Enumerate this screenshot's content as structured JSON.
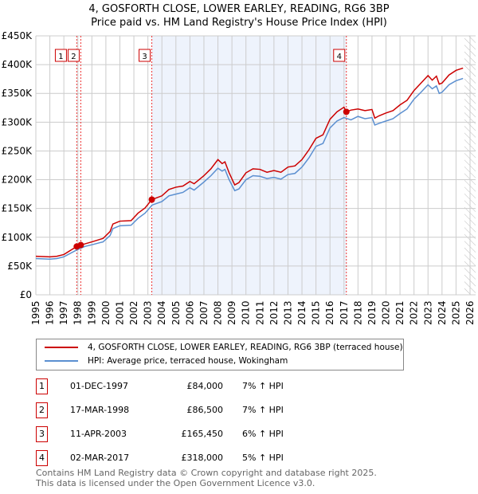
{
  "title": "4, GOSFORTH CLOSE, LOWER EARLEY, READING, RG6 3BP",
  "subtitle": "Price paid vs. HM Land Registry's House Price Index (HPI)",
  "colors": {
    "property": "#cc0000",
    "hpi": "#5b8fd0",
    "shade": "#eef3fc"
  },
  "chart_data": {
    "type": "line",
    "xlim": [
      1995,
      2026
    ],
    "ylim": [
      0,
      450000
    ],
    "yticks": [
      0,
      50000,
      100000,
      150000,
      200000,
      250000,
      300000,
      350000,
      400000,
      450000
    ],
    "ytick_labels": [
      "£0",
      "£50K",
      "£100K",
      "£150K",
      "£200K",
      "£250K",
      "£300K",
      "£350K",
      "£400K",
      "£450K"
    ],
    "xticks": [
      "1995",
      "1996",
      "1997",
      "1998",
      "1999",
      "2000",
      "2001",
      "2002",
      "2003",
      "2004",
      "2005",
      "2006",
      "2007",
      "2008",
      "2009",
      "2010",
      "2011",
      "2012",
      "2013",
      "2014",
      "2015",
      "2016",
      "2017",
      "2018",
      "2019",
      "2020",
      "2021",
      "2022",
      "2023",
      "2024",
      "2025",
      "2026"
    ],
    "grid": true,
    "shaded_range": [
      2003.28,
      2017.17
    ],
    "forecast_hatch_from": 2025.6,
    "series": [
      {
        "name": "4, GOSFORTH CLOSE, LOWER EARLEY, READING, RG6 3BP (terraced house)",
        "color": "#cc0000",
        "x": [
          1995,
          1996,
          1996.5,
          1997,
          1997.92,
          1998.21,
          1999,
          1999.8,
          2000.3,
          2000.5,
          2001,
          2001.8,
          2002.3,
          2002.8,
          2003.28,
          2004,
          2004.5,
          2005,
          2005.5,
          2006,
          2006.3,
          2007,
          2007.5,
          2008,
          2008.3,
          2008.5,
          2008.8,
          2009.2,
          2009.5,
          2010,
          2010.5,
          2011,
          2011.5,
          2012,
          2012.5,
          2013,
          2013.5,
          2014,
          2014.5,
          2015,
          2015.5,
          2016,
          2016.5,
          2017,
          2017.17,
          2017.5,
          2018,
          2018.5,
          2019,
          2019.2,
          2019.5,
          2020,
          2020.5,
          2021,
          2021.5,
          2022,
          2022.5,
          2023,
          2023.3,
          2023.6,
          2023.8,
          2024,
          2024.5,
          2025,
          2025.5
        ],
        "y": [
          67000,
          66000,
          67000,
          70000,
          84000,
          86500,
          92000,
          98000,
          110000,
          123000,
          128000,
          129000,
          142000,
          151000,
          165450,
          172000,
          183000,
          187000,
          189000,
          197000,
          193000,
          207000,
          219000,
          235000,
          228000,
          231000,
          212000,
          191000,
          195000,
          212000,
          219000,
          218000,
          213000,
          216000,
          213000,
          222000,
          224000,
          235000,
          252000,
          272000,
          278000,
          305000,
          318000,
          326000,
          318000,
          321000,
          323000,
          320000,
          322000,
          307000,
          311000,
          316000,
          320000,
          330000,
          338000,
          355000,
          368000,
          381000,
          373000,
          380000,
          366000,
          368000,
          382000,
          390000,
          394000
        ]
      },
      {
        "name": "HPI: Average price, terraced house, Wokingham",
        "color": "#5b8fd0",
        "x": [
          1995,
          1996,
          1996.5,
          1997,
          1997.92,
          1998.5,
          1999,
          1999.8,
          2000.3,
          2000.5,
          2001,
          2001.8,
          2002.3,
          2002.8,
          2003.3,
          2004,
          2004.5,
          2005,
          2005.5,
          2006,
          2006.3,
          2007,
          2007.5,
          2008,
          2008.3,
          2008.5,
          2008.8,
          2009.2,
          2009.5,
          2010,
          2010.5,
          2011,
          2011.5,
          2012,
          2012.5,
          2013,
          2013.5,
          2014,
          2014.5,
          2015,
          2015.5,
          2016,
          2016.5,
          2017,
          2017.5,
          2018,
          2018.5,
          2019,
          2019.2,
          2019.5,
          2020,
          2020.5,
          2021,
          2021.5,
          2022,
          2022.5,
          2023,
          2023.3,
          2023.6,
          2023.8,
          2024,
          2024.5,
          2025,
          2025.5
        ],
        "y": [
          63000,
          62000,
          63000,
          66000,
          78000,
          84000,
          87000,
          92000,
          103000,
          115000,
          120000,
          121000,
          133000,
          142000,
          156000,
          162000,
          172000,
          175000,
          178000,
          186000,
          182000,
          196000,
          207000,
          220000,
          215000,
          218000,
          200000,
          181000,
          184000,
          200000,
          207000,
          206000,
          202000,
          204000,
          201000,
          209000,
          211000,
          222000,
          238000,
          258000,
          263000,
          290000,
          302000,
          308000,
          304000,
          310000,
          306000,
          308000,
          295000,
          298000,
          302000,
          306000,
          315000,
          323000,
          340000,
          352000,
          365000,
          358000,
          363000,
          350000,
          352000,
          365000,
          372000,
          376000
        ]
      }
    ],
    "sales": [
      {
        "n": "1",
        "x": 1997.92,
        "y": 84000
      },
      {
        "n": "2",
        "x": 1998.21,
        "y": 86500
      },
      {
        "n": "3",
        "x": 2003.28,
        "y": 165450
      },
      {
        "n": "4",
        "x": 2017.17,
        "y": 318000
      }
    ]
  },
  "legend": {
    "property": "4, GOSFORTH CLOSE, LOWER EARLEY, READING, RG6 3BP (terraced house)",
    "hpi": "HPI: Average price, terraced house, Wokingham"
  },
  "transactions": [
    {
      "n": "1",
      "date": "01-DEC-1997",
      "price": "£84,000",
      "hpi": "7% ↑ HPI"
    },
    {
      "n": "2",
      "date": "17-MAR-1998",
      "price": "£86,500",
      "hpi": "7% ↑ HPI"
    },
    {
      "n": "3",
      "date": "11-APR-2003",
      "price": "£165,450",
      "hpi": "6% ↑ HPI"
    },
    {
      "n": "4",
      "date": "02-MAR-2017",
      "price": "£318,000",
      "hpi": "5% ↑ HPI"
    }
  ],
  "footer": {
    "line1": "Contains HM Land Registry data © Crown copyright and database right 2025.",
    "line2": "This data is licensed under the Open Government Licence v3.0."
  }
}
